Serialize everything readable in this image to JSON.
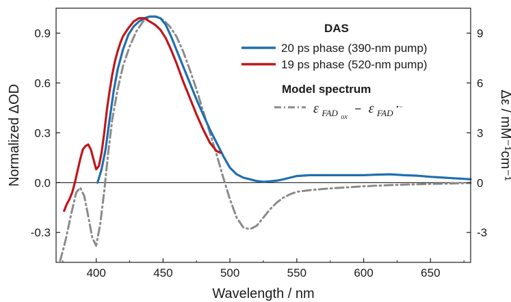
{
  "chart_data": {
    "type": "line",
    "xlabel": "Wavelength / nm",
    "ylabel_left": "Normalized ΔOD",
    "ylabel_right": "Δε / mM⁻¹cm⁻¹",
    "xlim": [
      370,
      680
    ],
    "ylim_left": [
      -0.48,
      1.05
    ],
    "ylim_right": [
      -4.8,
      10.5
    ],
    "x_ticks": [
      400,
      450,
      500,
      550,
      600,
      650
    ],
    "x_tick_labels": [
      "400",
      "450",
      "500",
      "550",
      "600",
      "650"
    ],
    "y_left_ticks": [
      -0.3,
      0.0,
      0.3,
      0.6,
      0.9
    ],
    "y_left_tick_labels": [
      "-0.3",
      "0.0",
      "0.3",
      "0.6",
      "0.9"
    ],
    "y_right_ticks": [
      -3,
      0,
      3,
      6,
      9
    ],
    "y_right_tick_labels": [
      "-3",
      "0",
      "3",
      "6",
      "9"
    ],
    "zero_line": true,
    "legend": {
      "position": "top-right",
      "group1_title": "DAS",
      "group2_title": "Model spectrum",
      "model_label_main_1": "ε",
      "model_label_sub_1": "FAD",
      "model_label_subsub_1": "ox",
      "model_label_minus": "−",
      "model_label_main_2": "ε",
      "model_label_sub_2": "FAD",
      "model_label_sup_2": "•−"
    },
    "series": [
      {
        "name": "20 ps phase (390-nm pump)",
        "color": "#1f6fae",
        "axis": "left",
        "style": "solid",
        "x": [
          401,
          404,
          407,
          410,
          413,
          416,
          420,
          424,
          428,
          432,
          436,
          440,
          444,
          448,
          452,
          456,
          460,
          465,
          470,
          475,
          480,
          485,
          490,
          495,
          500,
          505,
          510,
          515,
          520,
          525,
          530,
          535,
          540,
          545,
          550,
          560,
          570,
          580,
          590,
          600,
          610,
          620,
          630,
          640,
          650,
          660,
          670,
          680
        ],
        "y": [
          0.0,
          0.08,
          0.2,
          0.38,
          0.55,
          0.68,
          0.8,
          0.89,
          0.94,
          0.97,
          0.99,
          1.0,
          1.0,
          0.99,
          0.95,
          0.88,
          0.8,
          0.7,
          0.6,
          0.5,
          0.41,
          0.32,
          0.24,
          0.16,
          0.09,
          0.05,
          0.03,
          0.02,
          0.01,
          0.005,
          0.008,
          0.012,
          0.02,
          0.03,
          0.04,
          0.045,
          0.045,
          0.045,
          0.045,
          0.045,
          0.048,
          0.05,
          0.045,
          0.042,
          0.035,
          0.03,
          0.025,
          0.02
        ]
      },
      {
        "name": "19 ps phase (520-nm pump)",
        "color": "#c0161b",
        "axis": "left",
        "style": "solid",
        "x": [
          376,
          378,
          380,
          382,
          384,
          386,
          388,
          390,
          392,
          394,
          396,
          398,
          400,
          402,
          404,
          406,
          408,
          410,
          412,
          414,
          416,
          418,
          420,
          424,
          428,
          432,
          436,
          440,
          444,
          448,
          452,
          456,
          460,
          465,
          470,
          475,
          480,
          485,
          490,
          493
        ],
        "y": [
          -0.17,
          -0.13,
          -0.1,
          -0.06,
          0.0,
          0.07,
          0.14,
          0.2,
          0.22,
          0.23,
          0.2,
          0.14,
          0.08,
          0.1,
          0.18,
          0.3,
          0.44,
          0.55,
          0.65,
          0.73,
          0.79,
          0.84,
          0.88,
          0.93,
          0.97,
          0.99,
          0.99,
          0.97,
          0.95,
          0.92,
          0.87,
          0.8,
          0.72,
          0.61,
          0.51,
          0.41,
          0.32,
          0.24,
          0.19,
          0.18
        ]
      },
      {
        "name": "Model spectrum",
        "color": "#8a8a8a",
        "axis": "right",
        "style": "dashdot",
        "x": [
          373,
          377,
          381,
          385,
          388,
          391,
          394,
          397,
          400,
          403,
          406,
          409,
          412,
          416,
          420,
          425,
          430,
          435,
          440,
          445,
          450,
          455,
          460,
          465,
          470,
          475,
          480,
          485,
          490,
          495,
          500,
          505,
          510,
          515,
          520,
          525,
          530,
          535,
          540,
          545,
          550,
          560,
          570,
          580,
          590,
          600,
          620,
          640,
          660,
          680
        ],
        "y": [
          -4.7,
          -3.5,
          -2.0,
          -0.6,
          -0.3,
          -0.8,
          -2.0,
          -3.3,
          -3.8,
          -2.5,
          -0.5,
          1.8,
          3.8,
          5.6,
          7.0,
          8.2,
          9.1,
          9.7,
          10.0,
          10.0,
          9.8,
          9.4,
          8.8,
          7.9,
          6.8,
          5.6,
          4.3,
          3.0,
          1.7,
          0.3,
          -1.0,
          -2.1,
          -2.7,
          -2.8,
          -2.6,
          -2.1,
          -1.6,
          -1.2,
          -0.9,
          -0.7,
          -0.55,
          -0.45,
          -0.38,
          -0.32,
          -0.27,
          -0.22,
          -0.15,
          -0.1,
          -0.06,
          -0.02
        ]
      }
    ]
  }
}
